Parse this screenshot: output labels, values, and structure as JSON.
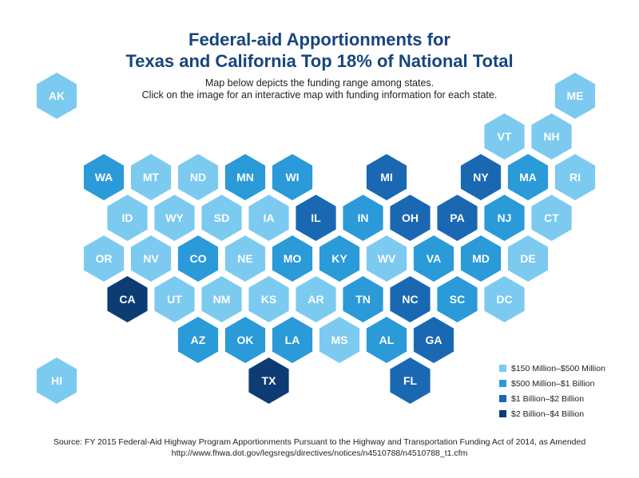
{
  "title_line1": "Federal-aid Apportionments for",
  "title_line2": "Texas and California Top 18% of National Total",
  "subtitle_line1": "Map below depicts the funding range among states.",
  "subtitle_line2": "Click on the image for an interactive map with funding information for each state.",
  "source_line1": "Source: FY 2015 Federal-Aid Highway Program Apportionments Pursuant to the Highway and Transportation Funding Act of 2014, as Amended",
  "source_line2": "http://www.fhwa.dot.gov/legsregs/directives/notices/n4510788/n4510788_t1.cfm",
  "legend": [
    {
      "label": "$150 Million–$500 Million",
      "color": "#7ccaf0"
    },
    {
      "label": "$500 Million–$1 Billion",
      "color": "#2a9ad8"
    },
    {
      "label": "$1 Billion–$2 Billion",
      "color": "#1a68b2"
    },
    {
      "label": "$2 Billion–$4 Billion",
      "color": "#0d3c74"
    }
  ],
  "states": [
    {
      "abbr": "AK",
      "row": 0,
      "col": 0,
      "tier": 0
    },
    {
      "abbr": "ME",
      "row": 0,
      "col": 11,
      "tier": 0
    },
    {
      "abbr": "VT",
      "row": 1,
      "col": 9.5,
      "tier": 0
    },
    {
      "abbr": "NH",
      "row": 1,
      "col": 10.5,
      "tier": 0
    },
    {
      "abbr": "WA",
      "row": 2,
      "col": 1,
      "tier": 1
    },
    {
      "abbr": "MT",
      "row": 2,
      "col": 2,
      "tier": 0
    },
    {
      "abbr": "ND",
      "row": 2,
      "col": 3,
      "tier": 0
    },
    {
      "abbr": "MN",
      "row": 2,
      "col": 4,
      "tier": 1
    },
    {
      "abbr": "WI",
      "row": 2,
      "col": 5,
      "tier": 1
    },
    {
      "abbr": "MI",
      "row": 2,
      "col": 7,
      "tier": 2
    },
    {
      "abbr": "NY",
      "row": 2,
      "col": 9,
      "tier": 2
    },
    {
      "abbr": "MA",
      "row": 2,
      "col": 10,
      "tier": 1
    },
    {
      "abbr": "RI",
      "row": 2,
      "col": 11,
      "tier": 0
    },
    {
      "abbr": "ID",
      "row": 3,
      "col": 1.5,
      "tier": 0
    },
    {
      "abbr": "WY",
      "row": 3,
      "col": 2.5,
      "tier": 0
    },
    {
      "abbr": "SD",
      "row": 3,
      "col": 3.5,
      "tier": 0
    },
    {
      "abbr": "IA",
      "row": 3,
      "col": 4.5,
      "tier": 0
    },
    {
      "abbr": "IL",
      "row": 3,
      "col": 5.5,
      "tier": 2
    },
    {
      "abbr": "IN",
      "row": 3,
      "col": 6.5,
      "tier": 1
    },
    {
      "abbr": "OH",
      "row": 3,
      "col": 7.5,
      "tier": 2
    },
    {
      "abbr": "PA",
      "row": 3,
      "col": 8.5,
      "tier": 2
    },
    {
      "abbr": "NJ",
      "row": 3,
      "col": 9.5,
      "tier": 1
    },
    {
      "abbr": "CT",
      "row": 3,
      "col": 10.5,
      "tier": 0
    },
    {
      "abbr": "OR",
      "row": 4,
      "col": 1,
      "tier": 0
    },
    {
      "abbr": "NV",
      "row": 4,
      "col": 2,
      "tier": 0
    },
    {
      "abbr": "CO",
      "row": 4,
      "col": 3,
      "tier": 1
    },
    {
      "abbr": "NE",
      "row": 4,
      "col": 4,
      "tier": 0
    },
    {
      "abbr": "MO",
      "row": 4,
      "col": 5,
      "tier": 1
    },
    {
      "abbr": "KY",
      "row": 4,
      "col": 6,
      "tier": 1
    },
    {
      "abbr": "WV",
      "row": 4,
      "col": 7,
      "tier": 0
    },
    {
      "abbr": "VA",
      "row": 4,
      "col": 8,
      "tier": 1
    },
    {
      "abbr": "MD",
      "row": 4,
      "col": 9,
      "tier": 1
    },
    {
      "abbr": "DE",
      "row": 4,
      "col": 10,
      "tier": 0
    },
    {
      "abbr": "CA",
      "row": 5,
      "col": 1.5,
      "tier": 3
    },
    {
      "abbr": "UT",
      "row": 5,
      "col": 2.5,
      "tier": 0
    },
    {
      "abbr": "NM",
      "row": 5,
      "col": 3.5,
      "tier": 0
    },
    {
      "abbr": "KS",
      "row": 5,
      "col": 4.5,
      "tier": 0
    },
    {
      "abbr": "AR",
      "row": 5,
      "col": 5.5,
      "tier": 0
    },
    {
      "abbr": "TN",
      "row": 5,
      "col": 6.5,
      "tier": 1
    },
    {
      "abbr": "NC",
      "row": 5,
      "col": 7.5,
      "tier": 2
    },
    {
      "abbr": "SC",
      "row": 5,
      "col": 8.5,
      "tier": 1
    },
    {
      "abbr": "DC",
      "row": 5,
      "col": 9.5,
      "tier": 0
    },
    {
      "abbr": "AZ",
      "row": 6,
      "col": 3,
      "tier": 1
    },
    {
      "abbr": "OK",
      "row": 6,
      "col": 4,
      "tier": 1
    },
    {
      "abbr": "LA",
      "row": 6,
      "col": 5,
      "tier": 1
    },
    {
      "abbr": "MS",
      "row": 6,
      "col": 6,
      "tier": 0
    },
    {
      "abbr": "AL",
      "row": 6,
      "col": 7,
      "tier": 1
    },
    {
      "abbr": "GA",
      "row": 6,
      "col": 8,
      "tier": 2
    },
    {
      "abbr": "HI",
      "row": 7,
      "col": 0,
      "tier": 0
    },
    {
      "abbr": "TX",
      "row": 7,
      "col": 4.5,
      "tier": 3
    },
    {
      "abbr": "FL",
      "row": 7,
      "col": 7.5,
      "tier": 2
    }
  ]
}
